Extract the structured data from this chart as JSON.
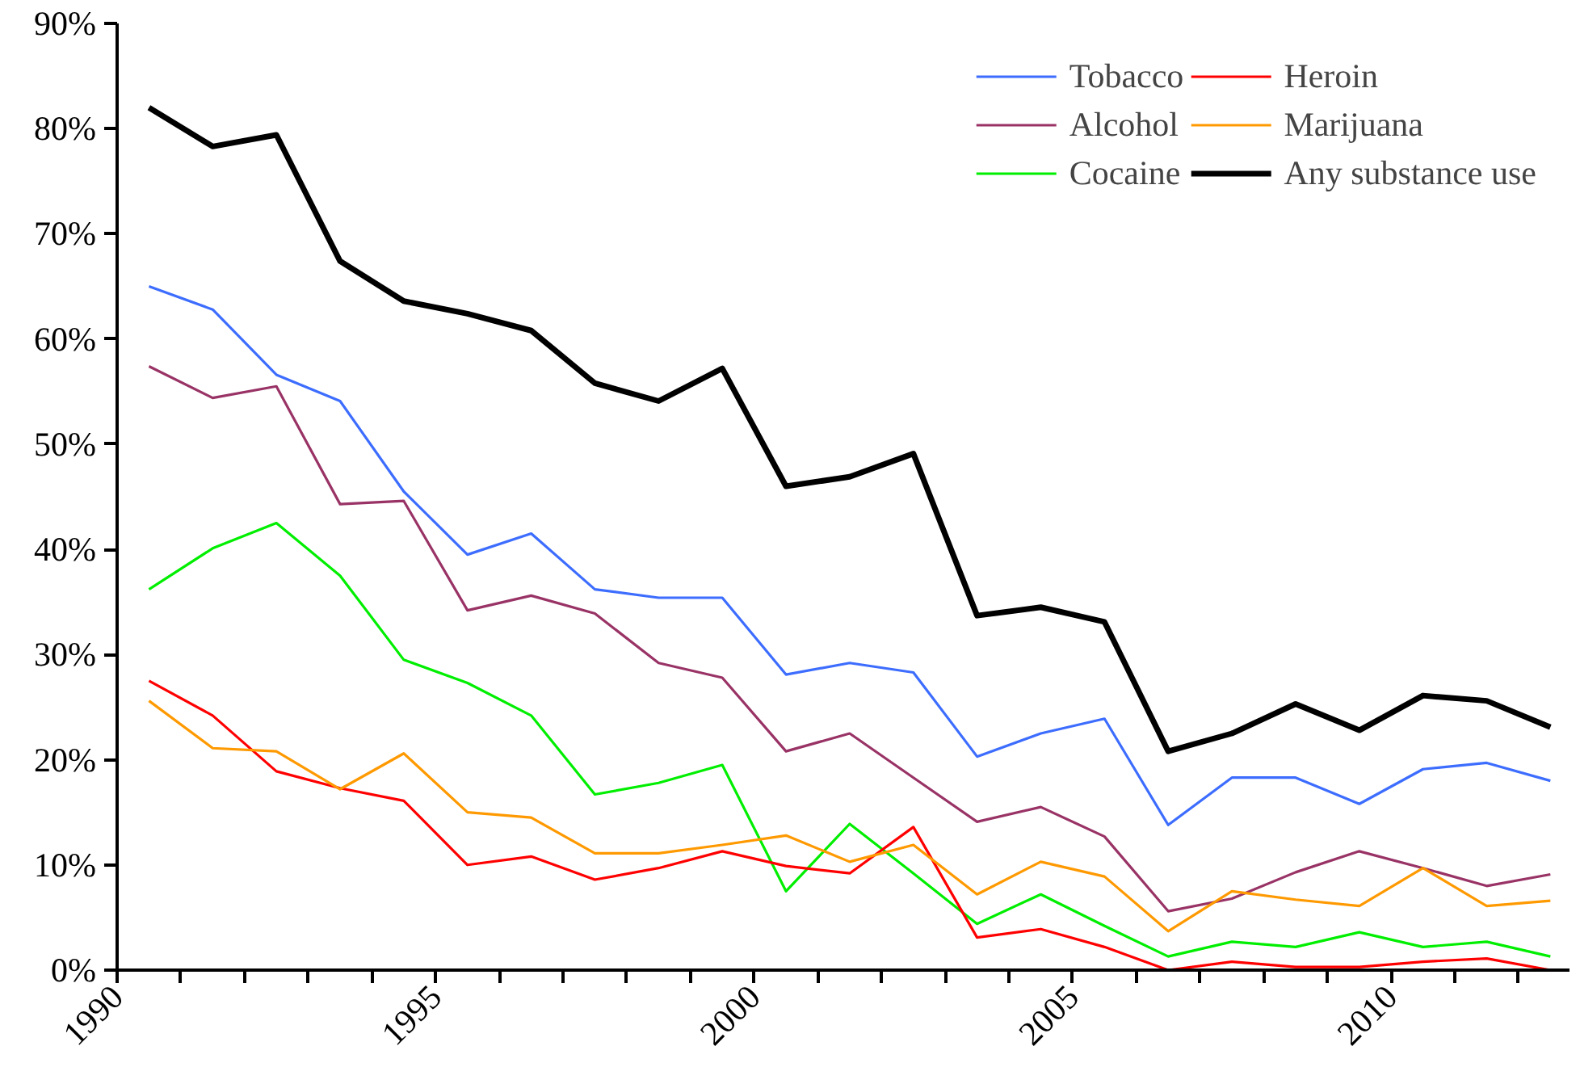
{
  "chart_data": {
    "type": "line",
    "x": [
      1990.5,
      1991.5,
      1992.5,
      1993.5,
      1994.5,
      1995.5,
      1996.5,
      1997.5,
      1998.5,
      1999.5,
      2000.5,
      2001.5,
      2002.5,
      2003.5,
      2004.5,
      2005.5,
      2006.5,
      2007.5,
      2008.5,
      2009.5,
      2010.5,
      2011.5,
      2012.5
    ],
    "series": [
      {
        "name": "Tobacco",
        "color": "#3d6dff",
        "values": [
          65,
          62.8,
          56.6,
          54.1,
          45.5,
          39.5,
          41.5,
          36.2,
          35.4,
          35.4,
          28.1,
          29.2,
          28.3,
          20.3,
          22.5,
          23.9,
          13.8,
          18.3,
          18.3,
          15.8,
          19.1,
          19.7,
          18.0
        ]
      },
      {
        "name": "Alcohol",
        "color": "#993366",
        "values": [
          57.4,
          54.4,
          55.5,
          44.3,
          44.6,
          34.2,
          35.6,
          33.9,
          29.2,
          27.8,
          20.8,
          22.5,
          18.3,
          14.1,
          15.5,
          12.7,
          5.6,
          6.8,
          9.3,
          11.3,
          9.7,
          8.0,
          9.1
        ]
      },
      {
        "name": "Cocaine",
        "color": "#00ee00",
        "values": [
          36.2,
          40.1,
          42.5,
          37.5,
          29.5,
          27.3,
          24.2,
          16.7,
          17.8,
          19.5,
          7.5,
          13.9,
          9.2,
          4.4,
          7.2,
          4.2,
          1.3,
          2.7,
          2.2,
          3.6,
          2.2,
          2.7,
          1.3
        ]
      },
      {
        "name": "Heroin",
        "color": "#ff0000",
        "values": [
          27.5,
          24.2,
          18.9,
          17.3,
          16.1,
          10.0,
          10.8,
          8.6,
          9.7,
          11.3,
          9.9,
          9.2,
          13.6,
          3.1,
          3.9,
          2.2,
          0,
          0.8,
          0.3,
          0.3,
          0.8,
          1.1,
          0
        ]
      },
      {
        "name": "Marijuana",
        "color": "#ff9900",
        "values": [
          25.6,
          21.1,
          20.8,
          17.2,
          20.6,
          15.0,
          14.5,
          11.1,
          11.1,
          11.9,
          12.8,
          10.3,
          11.9,
          7.2,
          10.3,
          8.9,
          3.7,
          7.5,
          6.7,
          6.1,
          9.7,
          6.1,
          6.6
        ]
      },
      {
        "name": "Any substance use",
        "color": "#000000",
        "values": [
          82,
          78.3,
          79.4,
          67.4,
          63.6,
          62.4,
          60.8,
          55.8,
          54.1,
          57.2,
          46,
          46.9,
          49.1,
          33.7,
          34.5,
          33.1,
          20.8,
          22.5,
          25.3,
          22.8,
          26.1,
          25.6,
          23.1
        ]
      }
    ],
    "xlim": [
      1990,
      2012.8
    ],
    "xticks": [
      1990,
      {
        "value": 1991,
        "label": null
      },
      {
        "value": 1992,
        "label": null
      },
      {
        "value": 1993,
        "label": null
      },
      {
        "value": 1994,
        "label": null
      },
      1995,
      {
        "value": 1996,
        "label": null
      },
      {
        "value": 1997,
        "label": null
      },
      {
        "value": 1998,
        "label": null
      },
      {
        "value": 1999,
        "label": null
      },
      2000,
      {
        "value": 2001,
        "label": null
      },
      {
        "value": 2002,
        "label": null
      },
      {
        "value": 2003,
        "label": null
      },
      {
        "value": 2004,
        "label": null
      },
      2005,
      {
        "value": 2006,
        "label": null
      },
      {
        "value": 2007,
        "label": null
      },
      {
        "value": 2008,
        "label": null
      },
      {
        "value": 2009,
        "label": null
      },
      2010,
      {
        "value": 2011,
        "label": null
      },
      {
        "value": 2012,
        "label": null
      }
    ],
    "ylim": [
      0,
      90
    ],
    "yticks": [
      {
        "value": 0,
        "label": "0%"
      },
      {
        "value": 10,
        "label": "10%"
      },
      {
        "value": 20,
        "label": "20%"
      },
      {
        "value": 30,
        "label": "30%"
      },
      {
        "value": 40,
        "label": "40%"
      },
      {
        "value": 50,
        "label": "50%"
      },
      {
        "value": 60,
        "label": "60%"
      },
      {
        "value": 70,
        "label": "70%"
      },
      {
        "value": 80,
        "label": "80%"
      },
      {
        "value": 90,
        "label": "90%"
      }
    ],
    "grid": false,
    "legend": "top right",
    "marker": "none",
    "line_style": "solid"
  }
}
